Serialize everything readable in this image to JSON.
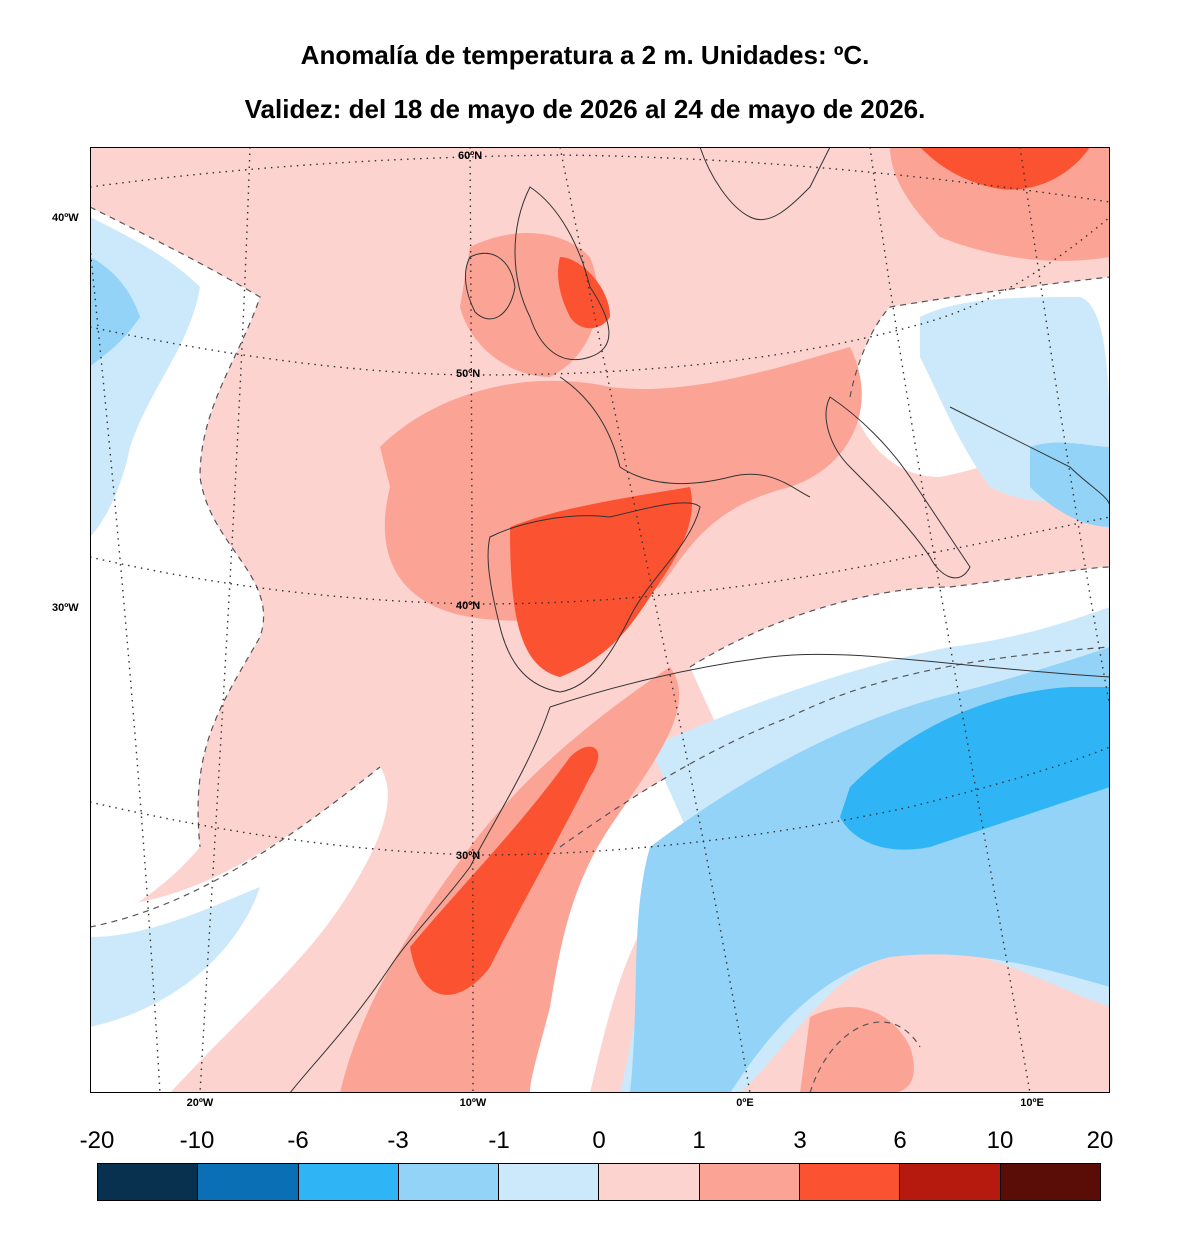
{
  "title_line1": "Anomalía de temperatura a 2 m. Unidades: ºC.",
  "title_line2": "Validez: del 18 de mayo de 2026 al 24 de mayo de 2026.",
  "map": {
    "lon_labels": [
      "20ºW",
      "10ºW",
      "0ºE",
      "10ºE"
    ],
    "lat_side_labels": [
      "40ºW",
      "30ºW"
    ],
    "lat_inner_labels": [
      "60ºN",
      "50ºN",
      "40ºN",
      "30ºN"
    ]
  },
  "colorbar": {
    "tick_labels": [
      "-20",
      "-10",
      "-6",
      "-3",
      "-1",
      "0",
      "1",
      "3",
      "6",
      "10",
      "20"
    ],
    "colors": [
      "#08304f",
      "#0a6fb4",
      "#2fb4f5",
      "#93d3f8",
      "#cce9fb",
      "#fdd3cf",
      "#fba496",
      "#fb5232",
      "#b61a0e",
      "#5a0c06"
    ]
  },
  "colors": {
    "land_outline": "#333333",
    "contour_dashed": "#555555",
    "graticule": "#333333"
  }
}
